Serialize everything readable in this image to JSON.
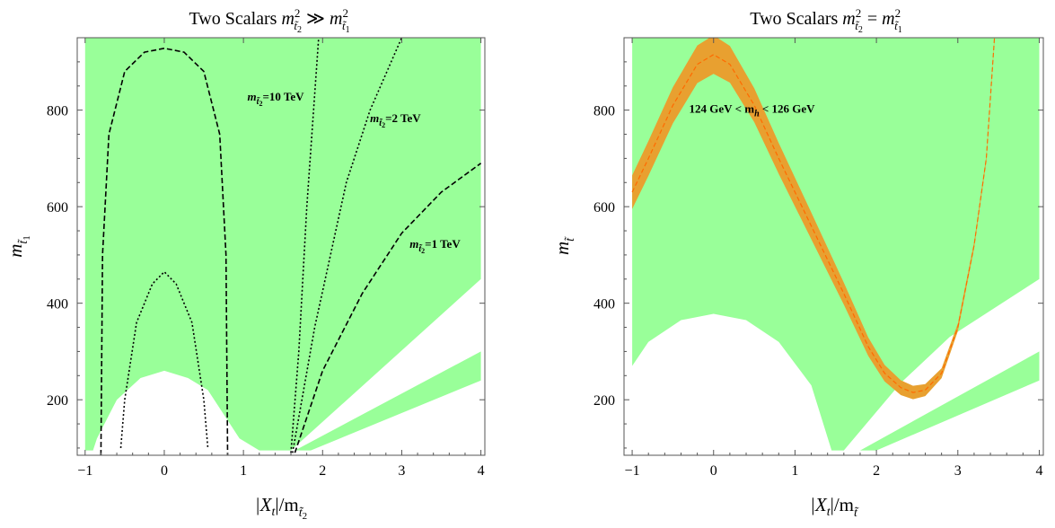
{
  "chart_data": [
    {
      "type": "area",
      "title": {
        "prefix": "Two Scalars",
        "math_lhs_base": "m",
        "math_lhs_sub": "t̃",
        "math_lhs_subsub": "2",
        "math_lhs_sup": "2",
        "relation": "≫",
        "math_rhs_base": "m",
        "math_rhs_sub": "t̃",
        "math_rhs_subsub": "1",
        "math_rhs_sup": "2"
      },
      "xlabel": {
        "base": "|X",
        "base_sub": "t",
        "mid": "|/m",
        "sub": "t̃",
        "subsub": "2"
      },
      "ylabel": {
        "base": "m",
        "sub": "t̃",
        "subsub": "1"
      },
      "xlim": [
        -1.1,
        4.05
      ],
      "ylim": [
        85,
        950
      ],
      "xticks": [
        "−1",
        "0",
        "1",
        "2",
        "3",
        "4"
      ],
      "yticks": [
        "200",
        "400",
        "600",
        "800"
      ],
      "fill_color": "#99ff99",
      "regions": [
        {
          "name": "allowed-main",
          "points": [
            [
              -1,
              950
            ],
            [
              4,
              950
            ],
            [
              4,
              450
            ],
            [
              1.6,
              95
            ],
            [
              1.2,
              95
            ],
            [
              0.95,
              120
            ],
            [
              0.55,
              220
            ],
            [
              0.3,
              245
            ],
            [
              0,
              260
            ],
            [
              -0.3,
              245
            ],
            [
              -0.6,
              200
            ],
            [
              -0.85,
              120
            ],
            [
              -0.9,
              95
            ],
            [
              -1,
              95
            ]
          ]
        },
        {
          "name": "allowed-wedge",
          "points": [
            [
              1.65,
              95
            ],
            [
              4,
              300
            ],
            [
              4,
              240
            ],
            [
              1.85,
              95
            ]
          ]
        }
      ],
      "series": [
        {
          "style": "dashed",
          "points": [
            [
              -0.8,
              85
            ],
            [
              -0.78,
              500
            ],
            [
              -0.7,
              750
            ],
            [
              -0.5,
              880
            ],
            [
              -0.25,
              920
            ],
            [
              0,
              928
            ],
            [
              0.25,
              920
            ],
            [
              0.5,
              880
            ],
            [
              0.7,
              750
            ],
            [
              0.78,
              500
            ],
            [
              0.8,
              85
            ]
          ]
        },
        {
          "style": "dotted",
          "points": [
            [
              -0.55,
              100
            ],
            [
              -0.5,
              200
            ],
            [
              -0.35,
              360
            ],
            [
              -0.15,
              440
            ],
            [
              0,
              465
            ],
            [
              0.15,
              440
            ],
            [
              0.35,
              360
            ],
            [
              0.5,
              200
            ],
            [
              0.55,
              100
            ]
          ]
        },
        {
          "style": "dotted",
          "points": [
            [
              1.6,
              90
            ],
            [
              1.7,
              300
            ],
            [
              1.8,
              600
            ],
            [
              1.95,
              950
            ]
          ]
        },
        {
          "style": "dotted",
          "points": [
            [
              1.62,
              90
            ],
            [
              1.9,
              350
            ],
            [
              2.3,
              650
            ],
            [
              2.6,
              800
            ],
            [
              3.0,
              950
            ]
          ]
        },
        {
          "style": "dashed",
          "points": [
            [
              1.65,
              90
            ],
            [
              2.0,
              260
            ],
            [
              2.5,
              420
            ],
            [
              3.0,
              545
            ],
            [
              3.5,
              630
            ],
            [
              4.0,
              690
            ]
          ]
        }
      ],
      "annotations": [
        {
          "base": "m",
          "sub": "t̃",
          "subsub": "2",
          "text": "=10 TeV",
          "x": 1.05,
          "y": 820
        },
        {
          "base": "m",
          "sub": "t̃",
          "subsub": "2",
          "text": "=2 TeV",
          "x": 2.6,
          "y": 775
        },
        {
          "base": "m",
          "sub": "t̃",
          "subsub": "2",
          "text": "=1 TeV",
          "x": 3.1,
          "y": 515
        }
      ]
    },
    {
      "type": "area",
      "title": {
        "prefix": "Two Scalars",
        "math_lhs_base": "m",
        "math_lhs_sub": "t̃",
        "math_lhs_subsub": "2",
        "math_lhs_sup": "2",
        "relation": "=",
        "math_rhs_base": "m",
        "math_rhs_sub": "t̃",
        "math_rhs_subsub": "1",
        "math_rhs_sup": "2"
      },
      "xlabel": {
        "base": "|X",
        "base_sub": "t",
        "mid": "|/m",
        "sub": "t̃",
        "subsub": ""
      },
      "ylabel": {
        "base": "m",
        "sub": "t̃",
        "subsub": ""
      },
      "xlim": [
        -1.1,
        4.05
      ],
      "ylim": [
        85,
        950
      ],
      "xticks": [
        "−1",
        "0",
        "1",
        "2",
        "3",
        "4"
      ],
      "yticks": [
        "200",
        "400",
        "600",
        "800"
      ],
      "fill_color": "#99ff99",
      "band_color": "#e8a030",
      "band_line_color": "#ff6a00",
      "regions": [
        {
          "name": "allowed-main",
          "points": [
            [
              -1,
              950
            ],
            [
              4,
              950
            ],
            [
              4,
              450
            ],
            [
              2.9,
              330
            ],
            [
              2.3,
              235
            ],
            [
              1.6,
              95
            ],
            [
              1.45,
              95
            ],
            [
              1.2,
              230
            ],
            [
              0.8,
              320
            ],
            [
              0.4,
              365
            ],
            [
              0,
              378
            ],
            [
              -0.4,
              365
            ],
            [
              -0.8,
              320
            ],
            [
              -1,
              270
            ]
          ]
        },
        {
          "name": "allowed-wedge",
          "points": [
            [
              1.8,
              95
            ],
            [
              4,
              300
            ],
            [
              4,
              240
            ],
            [
              2.0,
              95
            ]
          ]
        }
      ],
      "band": {
        "center": [
          [
            -1,
            630
          ],
          [
            -0.8,
            700
          ],
          [
            -0.5,
            810
          ],
          [
            -0.2,
            895
          ],
          [
            0,
            915
          ],
          [
            0.2,
            895
          ],
          [
            0.5,
            810
          ],
          [
            0.8,
            700
          ],
          [
            1.2,
            560
          ],
          [
            1.6,
            420
          ],
          [
            1.9,
            310
          ],
          [
            2.1,
            255
          ],
          [
            2.3,
            225
          ],
          [
            2.45,
            215
          ],
          [
            2.6,
            220
          ],
          [
            2.8,
            255
          ],
          [
            3.0,
            350
          ],
          [
            3.2,
            520
          ],
          [
            3.35,
            700
          ],
          [
            3.45,
            950
          ]
        ],
        "halfwidth": [
          [
            -1,
            35
          ],
          [
            0,
            40
          ],
          [
            1,
            30
          ],
          [
            2,
            18
          ],
          [
            2.45,
            14
          ],
          [
            3,
            8
          ],
          [
            3.45,
            5
          ]
        ]
      },
      "annotations": [
        {
          "label": "124 GeV < m",
          "label_sub": "h",
          "label_rest": " < 126 GeV",
          "x": -0.3,
          "y": 795
        }
      ]
    }
  ]
}
